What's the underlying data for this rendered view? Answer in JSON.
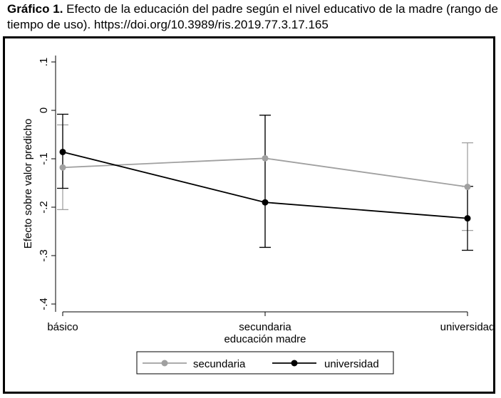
{
  "caption": {
    "label": "Gráfico 1.",
    "text": " Efecto de la educación del padre según el nivel educativo de la madre (rango de tiempo de uso). https://doi.org/10.3989/ris.2019.77.3.17.165"
  },
  "chart_data": {
    "type": "line",
    "title": "",
    "xlabel": "educación madre",
    "ylabel": "Efecto sobre valor predicho",
    "categories": [
      "básico",
      "secundaria",
      "universidad"
    ],
    "ylim": [
      -0.4,
      0.1
    ],
    "yticks": [
      ".1",
      "0",
      "-.1",
      "-.2",
      "-.3",
      "-.4"
    ],
    "ytick_values": [
      0.1,
      0,
      -0.1,
      -0.2,
      -0.3,
      -0.4
    ],
    "grid": false,
    "legend_position": "bottom",
    "series": [
      {
        "name": "secundaria",
        "color": "#a0a0a0",
        "values": [
          -0.118,
          -0.099,
          -0.158
        ],
        "ci_low": [
          -0.205,
          -0.283,
          -0.248
        ],
        "ci_high": [
          -0.03,
          -0.01,
          -0.067
        ]
      },
      {
        "name": "universidad",
        "color": "#000000",
        "values": [
          -0.086,
          -0.19,
          -0.223
        ],
        "ci_low": [
          -0.161,
          -0.283,
          -0.289
        ],
        "ci_high": [
          -0.008,
          -0.01,
          -0.157
        ]
      }
    ]
  }
}
